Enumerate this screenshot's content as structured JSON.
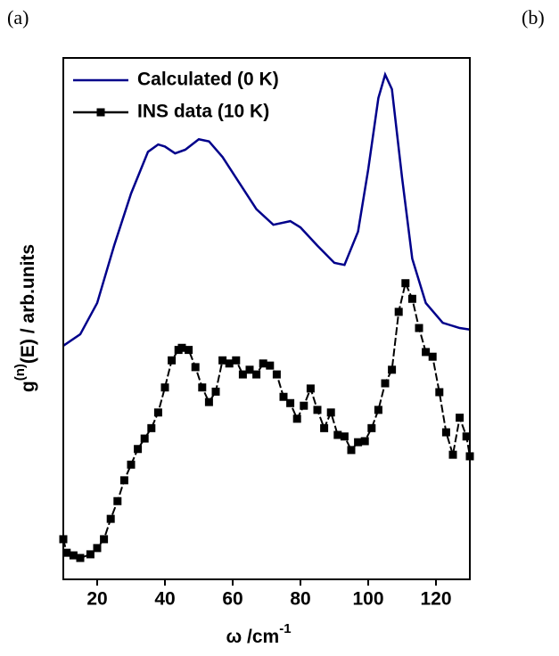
{
  "panel_labels": [
    "(a)",
    "(b)"
  ],
  "chart_data": {
    "type": "line",
    "y_label": {
      "base": "g",
      "superscript": "(n)",
      "rest": "(E) / arb.units"
    },
    "x_label": {
      "base": "ω /cm",
      "superscript": "-1"
    },
    "xlim": [
      10,
      130
    ],
    "xticks": [
      20,
      40,
      60,
      80,
      100,
      120
    ],
    "ylim": [
      0,
      100
    ],
    "legend": "upper left",
    "series": [
      {
        "name": "Calculated (0 K)",
        "color": "#00008b",
        "marker": false,
        "x": [
          10,
          15,
          20,
          25,
          30,
          35,
          38,
          40,
          43,
          46,
          50,
          53,
          57,
          62,
          67,
          72,
          77,
          80,
          85,
          90,
          93,
          97,
          100,
          103,
          105,
          107,
          110,
          113,
          117,
          122,
          127,
          130
        ],
        "values": [
          44.8,
          47,
          53,
          64,
          74,
          82,
          83.4,
          83,
          81.7,
          82.4,
          84.4,
          84,
          81,
          76,
          71,
          68,
          68.7,
          67.5,
          64,
          60.7,
          60.3,
          66.7,
          78.6,
          92.3,
          96.8,
          94,
          77,
          61.5,
          53,
          49.2,
          48.2,
          47.9
        ]
      },
      {
        "name": "INS data (10 K)",
        "color": "#000000",
        "marker": true,
        "x": [
          10,
          11,
          13,
          15,
          18,
          20,
          22,
          24,
          26,
          28,
          30,
          32,
          34,
          36,
          38,
          40,
          42,
          44,
          45,
          47,
          49,
          51,
          53,
          55,
          57,
          59,
          61,
          63,
          65,
          67,
          69,
          71,
          73,
          75,
          77,
          79,
          81,
          83,
          85,
          87,
          89,
          91,
          93,
          95,
          97,
          99,
          101,
          103,
          105,
          107,
          109,
          111,
          113,
          115,
          117,
          119,
          121,
          123,
          125,
          127,
          129,
          130
        ],
        "values": [
          7.7,
          5.1,
          4.6,
          4.1,
          4.8,
          6,
          7.7,
          11.6,
          15,
          19,
          22,
          25,
          27,
          29,
          32,
          36.8,
          42,
          44,
          44.4,
          44,
          40.7,
          36.8,
          34,
          36,
          42,
          41.4,
          42,
          39.3,
          40.2,
          39.3,
          41.4,
          41,
          39.3,
          35,
          33.8,
          30.8,
          33.3,
          36.6,
          32.5,
          29,
          32,
          27.7,
          27.4,
          24.8,
          26.3,
          26.5,
          29,
          32.5,
          37.6,
          40.2,
          51.3,
          56.8,
          53.8,
          48.2,
          43.6,
          42.7,
          35.9,
          28.2,
          23.9,
          31,
          27.4,
          23.6
        ]
      }
    ]
  }
}
